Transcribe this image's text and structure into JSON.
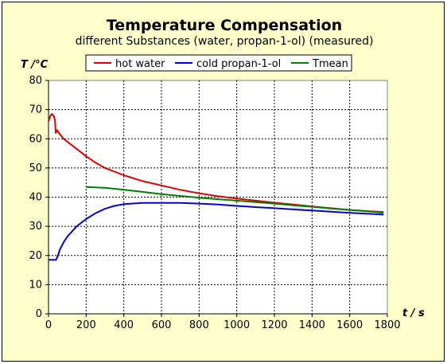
{
  "chart_data": {
    "type": "line",
    "title": "Temperature Compensation",
    "subtitle": "different Substances (water, propan-1-ol) (measured)",
    "xlabel": "t / s",
    "ylabel": "T /°C",
    "xlim": [
      0,
      1800
    ],
    "ylim": [
      0,
      80
    ],
    "xticks": [
      0,
      200,
      400,
      600,
      800,
      1000,
      1200,
      1400,
      1600,
      1800
    ],
    "yticks": [
      0,
      10,
      20,
      30,
      40,
      50,
      60,
      70,
      80
    ],
    "grid": true,
    "legend_position": "top",
    "series": [
      {
        "name": "hot water",
        "color": "#dd0000",
        "x": [
          0,
          10,
          20,
          30,
          35,
          38,
          45,
          55,
          80,
          100,
          150,
          200,
          250,
          300,
          400,
          500,
          600,
          700,
          800,
          900,
          1000,
          1100,
          1200,
          1300,
          1400,
          1500,
          1600,
          1700,
          1780
        ],
        "y": [
          66,
          68,
          68.5,
          67.5,
          66,
          62,
          63,
          62,
          60,
          59,
          56.5,
          54,
          51.8,
          50,
          47.5,
          45.5,
          44,
          42.5,
          41.3,
          40.3,
          39.5,
          38.8,
          38.1,
          37.5,
          36.8,
          36.2,
          35.6,
          35.2,
          34.9
        ]
      },
      {
        "name": "cold propan-1-ol",
        "color": "#0000dd",
        "x": [
          0,
          40,
          50,
          60,
          80,
          100,
          150,
          200,
          250,
          300,
          350,
          400,
          500,
          600,
          700,
          800,
          900,
          1000,
          1100,
          1200,
          1300,
          1400,
          1500,
          1600,
          1700,
          1780
        ],
        "y": [
          18.5,
          18.5,
          20,
          22,
          24.5,
          26.5,
          30,
          32.5,
          34.5,
          36,
          37,
          37.6,
          38,
          38,
          38,
          37.8,
          37.5,
          37,
          36.6,
          36.2,
          35.8,
          35.4,
          35,
          34.6,
          34.3,
          34
        ]
      },
      {
        "name": "Tmean",
        "color": "#008000",
        "x": [
          200,
          300,
          400,
          500,
          600,
          700,
          800,
          900,
          1000,
          1100,
          1200,
          1300,
          1400,
          1500,
          1600,
          1700,
          1780
        ],
        "y": [
          43.5,
          43.2,
          42.5,
          41.8,
          41,
          40.4,
          39.8,
          39.3,
          38.8,
          38.3,
          37.8,
          37.2,
          36.7,
          36.1,
          35.6,
          35.1,
          34.6
        ]
      }
    ]
  }
}
